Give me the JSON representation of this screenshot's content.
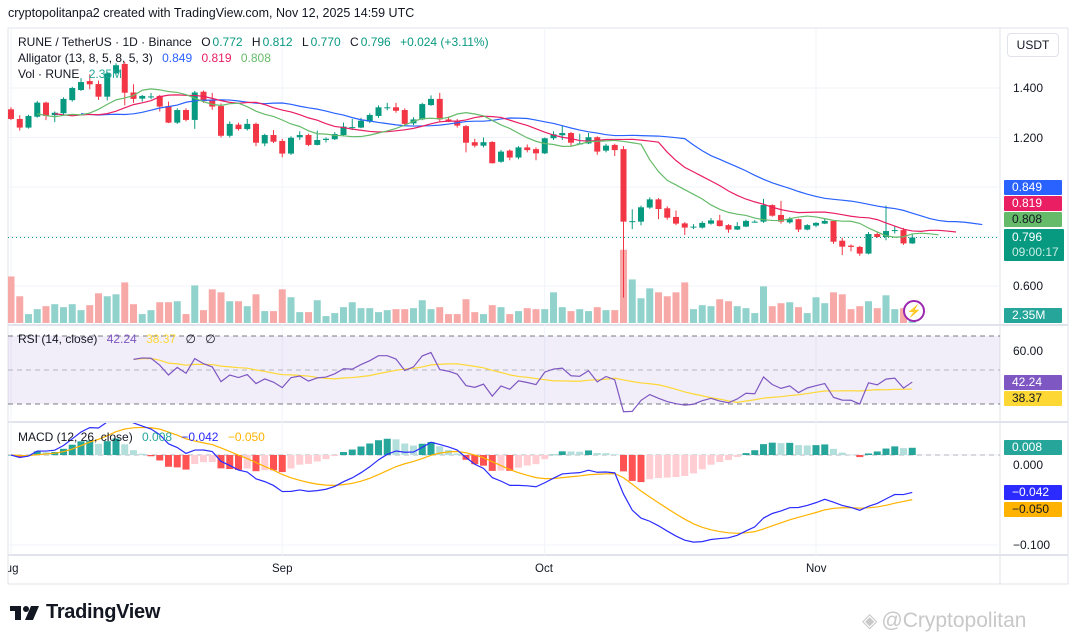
{
  "header": {
    "caption": "cryptopolitanpa2 created with TradingView.com, Nov 12, 2025 14:59 UTC"
  },
  "currency_button": "USDT",
  "legend": {
    "symbol": "RUNE / TetherUS · 1D · Binance",
    "o_label": "O",
    "o": "0.772",
    "h_label": "H",
    "h": "0.812",
    "l_label": "L",
    "l": "0.770",
    "c_label": "C",
    "c": "0.796",
    "change": "+0.024 (+3.11%)",
    "alligator_label": "Alligator (13, 8, 5, 8, 5, 3)",
    "jaw": "0.849",
    "teeth": "0.819",
    "lips": "0.808",
    "vol_label": "Vol · RUNE",
    "vol": "2.35M"
  },
  "rsi": {
    "label": "RSI (14, close)",
    "rsi": "42.24",
    "ma": "38.37",
    "v3": "∅",
    "v4": "∅"
  },
  "macd": {
    "label": "MACD (12, 26, close)",
    "hist": "0.008",
    "macd": "−0.042",
    "signal": "−0.050"
  },
  "price_axis": {
    "ticks": [
      "1.400",
      "1.200",
      "0.600"
    ]
  },
  "rsi_axis": {
    "ticks": [
      "60.00"
    ]
  },
  "macd_axis": {
    "ticks": [
      "0.000",
      "−0.100"
    ]
  },
  "badges": {
    "jaw": "0.849",
    "teeth": "0.819",
    "lips": "0.808",
    "last": "0.796",
    "countdown": "09:00:17",
    "vol": "2.35M",
    "rsi": "42.24",
    "rsi_ma": "38.37",
    "hist": "0.008",
    "macd": "−0.042",
    "signal": "−0.050"
  },
  "time_axis": [
    "Aug",
    "Sep",
    "Oct",
    "Nov"
  ],
  "branding": {
    "logo": "TradingView",
    "watermark": "@Cryptopolitan"
  },
  "colors": {
    "up": "#089981",
    "down": "#f23645",
    "vol_up": "#92d2cc",
    "vol_down": "#f7a9a7",
    "jaw": "#2962ff",
    "teeth": "#e91e63",
    "lips": "#66bb6a",
    "rsi": "#7e57c2",
    "rsi_ma": "#fdd835",
    "macd": "#2b2bff",
    "signal": "#ffb300",
    "hist_up": "#26a69a",
    "hist_up_fade": "#b2dfdb",
    "hist_down": "#ff5252",
    "hist_down_fade": "#ffcdd2"
  },
  "chart_data": {
    "type": "candlestick",
    "symbol": "RUNE / TetherUS",
    "interval": "1D",
    "x_ticks": [
      "Aug",
      "Sep",
      "Oct",
      "Nov"
    ],
    "y_ticks": [
      1.4,
      1.2,
      0.6
    ],
    "grid": true,
    "candles_ohlc": [
      [
        1.314,
        1.322,
        1.27,
        1.275
      ],
      [
        1.275,
        1.29,
        1.228,
        1.24
      ],
      [
        1.24,
        1.292,
        1.236,
        1.287
      ],
      [
        1.284,
        1.348,
        1.28,
        1.341
      ],
      [
        1.341,
        1.345,
        1.27,
        1.287
      ],
      [
        1.29,
        1.305,
        1.262,
        1.3
      ],
      [
        1.298,
        1.362,
        1.293,
        1.356
      ],
      [
        1.351,
        1.405,
        1.345,
        1.4
      ],
      [
        1.392,
        1.44,
        1.388,
        1.424
      ],
      [
        1.428,
        1.455,
        1.395,
        1.415
      ],
      [
        1.416,
        1.43,
        1.352,
        1.365
      ],
      [
        1.365,
        1.465,
        1.35,
        1.459
      ],
      [
        1.459,
        1.5,
        1.455,
        1.492
      ],
      [
        1.497,
        1.505,
        1.33,
        1.381
      ],
      [
        1.382,
        1.415,
        1.34,
        1.356
      ],
      [
        1.357,
        1.372,
        1.345,
        1.368
      ],
      [
        1.365,
        1.38,
        1.355,
        1.366
      ],
      [
        1.368,
        1.372,
        1.305,
        1.325
      ],
      [
        1.327,
        1.345,
        1.258,
        1.26
      ],
      [
        1.26,
        1.318,
        1.255,
        1.311
      ],
      [
        1.311,
        1.318,
        1.265,
        1.271
      ],
      [
        1.271,
        1.388,
        1.235,
        1.382
      ],
      [
        1.385,
        1.39,
        1.34,
        1.347
      ],
      [
        1.351,
        1.38,
        1.312,
        1.325
      ],
      [
        1.327,
        1.338,
        1.2,
        1.207
      ],
      [
        1.207,
        1.265,
        1.2,
        1.255
      ],
      [
        1.252,
        1.26,
        1.228,
        1.234
      ],
      [
        1.234,
        1.275,
        1.228,
        1.255
      ],
      [
        1.255,
        1.26,
        1.165,
        1.179
      ],
      [
        1.176,
        1.215,
        1.165,
        1.21
      ],
      [
        1.21,
        1.23,
        1.178,
        1.183
      ],
      [
        1.186,
        1.195,
        1.12,
        1.135
      ],
      [
        1.135,
        1.205,
        1.13,
        1.199
      ],
      [
        1.201,
        1.225,
        1.19,
        1.21
      ],
      [
        1.21,
        1.215,
        1.165,
        1.17
      ],
      [
        1.17,
        1.228,
        1.168,
        1.19
      ],
      [
        1.19,
        1.2,
        1.18,
        1.195
      ],
      [
        1.193,
        1.222,
        1.19,
        1.214
      ],
      [
        1.21,
        1.26,
        1.205,
        1.244
      ],
      [
        1.241,
        1.275,
        1.23,
        1.242
      ],
      [
        1.24,
        1.28,
        1.238,
        1.268
      ],
      [
        1.264,
        1.298,
        1.258,
        1.291
      ],
      [
        1.287,
        1.33,
        1.28,
        1.322
      ],
      [
        1.321,
        1.34,
        1.31,
        1.322
      ],
      [
        1.322,
        1.34,
        1.3,
        1.308
      ],
      [
        1.311,
        1.318,
        1.25,
        1.255
      ],
      [
        1.257,
        1.282,
        1.25,
        1.273
      ],
      [
        1.273,
        1.34,
        1.27,
        1.335
      ],
      [
        1.331,
        1.37,
        1.328,
        1.356
      ],
      [
        1.356,
        1.38,
        1.265,
        1.273
      ],
      [
        1.273,
        1.285,
        1.262,
        1.264
      ],
      [
        1.268,
        1.275,
        1.24,
        1.248
      ],
      [
        1.246,
        1.25,
        1.14,
        1.179
      ],
      [
        1.181,
        1.195,
        1.16,
        1.167
      ],
      [
        1.167,
        1.2,
        1.16,
        1.181
      ],
      [
        1.182,
        1.185,
        1.095,
        1.096
      ],
      [
        1.102,
        1.15,
        1.098,
        1.143
      ],
      [
        1.147,
        1.152,
        1.108,
        1.119
      ],
      [
        1.119,
        1.165,
        1.112,
        1.16
      ],
      [
        1.16,
        1.172,
        1.14,
        1.149
      ],
      [
        1.153,
        1.16,
        1.108,
        1.136
      ],
      [
        1.136,
        1.2,
        1.133,
        1.197
      ],
      [
        1.197,
        1.225,
        1.19,
        1.213
      ],
      [
        1.209,
        1.25,
        1.19,
        1.218
      ],
      [
        1.218,
        1.222,
        1.165,
        1.179
      ],
      [
        1.176,
        1.215,
        1.172,
        1.176
      ],
      [
        1.176,
        1.218,
        1.173,
        1.201
      ],
      [
        1.201,
        1.205,
        1.13,
        1.143
      ],
      [
        1.147,
        1.175,
        1.14,
        1.167
      ],
      [
        1.17,
        1.175,
        1.125,
        1.149
      ],
      [
        1.153,
        1.165,
        0.553,
        0.86
      ],
      [
        0.86,
        0.91,
        0.83,
        0.862
      ],
      [
        0.86,
        0.925,
        0.845,
        0.918
      ],
      [
        0.917,
        0.958,
        0.912,
        0.95
      ],
      [
        0.95,
        0.955,
        0.87,
        0.911
      ],
      [
        0.914,
        0.922,
        0.868,
        0.876
      ],
      [
        0.879,
        0.905,
        0.846,
        0.852
      ],
      [
        0.853,
        0.858,
        0.806,
        0.836
      ],
      [
        0.84,
        0.85,
        0.83,
        0.84
      ],
      [
        0.836,
        0.862,
        0.832,
        0.855
      ],
      [
        0.852,
        0.875,
        0.848,
        0.865
      ],
      [
        0.865,
        0.888,
        0.84,
        0.842
      ],
      [
        0.846,
        0.85,
        0.815,
        0.828
      ],
      [
        0.828,
        0.858,
        0.826,
        0.842
      ],
      [
        0.84,
        0.868,
        0.838,
        0.863
      ],
      [
        0.86,
        0.866,
        0.856,
        0.86
      ],
      [
        0.86,
        0.952,
        0.855,
        0.927
      ],
      [
        0.927,
        0.93,
        0.88,
        0.884
      ],
      [
        0.887,
        0.944,
        0.852,
        0.86
      ],
      [
        0.857,
        0.878,
        0.852,
        0.87
      ],
      [
        0.87,
        0.872,
        0.818,
        0.828
      ],
      [
        0.828,
        0.85,
        0.825,
        0.846
      ],
      [
        0.844,
        0.858,
        0.838,
        0.855
      ],
      [
        0.852,
        0.872,
        0.85,
        0.863
      ],
      [
        0.863,
        0.866,
        0.77,
        0.779
      ],
      [
        0.783,
        0.795,
        0.725,
        0.759
      ],
      [
        0.763,
        0.768,
        0.74,
        0.758
      ],
      [
        0.758,
        0.762,
        0.722,
        0.731
      ],
      [
        0.731,
        0.818,
        0.728,
        0.81
      ],
      [
        0.81,
        0.82,
        0.795,
        0.798
      ],
      [
        0.798,
        0.925,
        0.785,
        0.822
      ],
      [
        0.826,
        0.84,
        0.812,
        0.826
      ],
      [
        0.826,
        0.835,
        0.766,
        0.772
      ],
      [
        0.772,
        0.812,
        0.77,
        0.796
      ]
    ],
    "volume_millions": [
      47,
      27,
      9,
      14,
      17,
      19,
      16,
      19,
      13,
      18,
      30,
      27,
      29,
      41,
      19,
      9,
      13,
      21,
      21,
      22,
      9,
      38,
      13,
      34,
      31,
      22,
      22,
      17,
      29,
      12,
      12,
      34,
      26,
      11,
      11,
      23,
      7,
      10,
      16,
      21,
      15,
      15,
      11,
      13,
      14,
      14,
      15,
      23,
      14,
      16,
      9,
      9,
      24,
      11,
      9,
      18,
      16,
      9,
      12,
      15,
      14,
      14,
      31,
      16,
      12,
      14,
      12,
      16,
      13,
      13,
      74,
      44,
      25,
      35,
      31,
      27,
      31,
      41,
      14,
      18,
      17,
      24,
      22,
      17,
      15,
      10,
      37,
      17,
      20,
      21,
      16,
      10,
      26,
      20,
      31,
      29,
      14,
      17,
      22,
      15,
      28,
      14,
      15,
      2.35
    ],
    "indicators": {
      "alligator": {
        "jaw": 0.849,
        "teeth": 0.819,
        "lips": 0.808
      },
      "rsi": {
        "value": 42.24,
        "ma": 38.37,
        "upper_band": 70,
        "middle": 50,
        "lower_band": 30
      },
      "macd": {
        "histogram": 0.008,
        "macd": -0.042,
        "signal": -0.05
      }
    }
  }
}
